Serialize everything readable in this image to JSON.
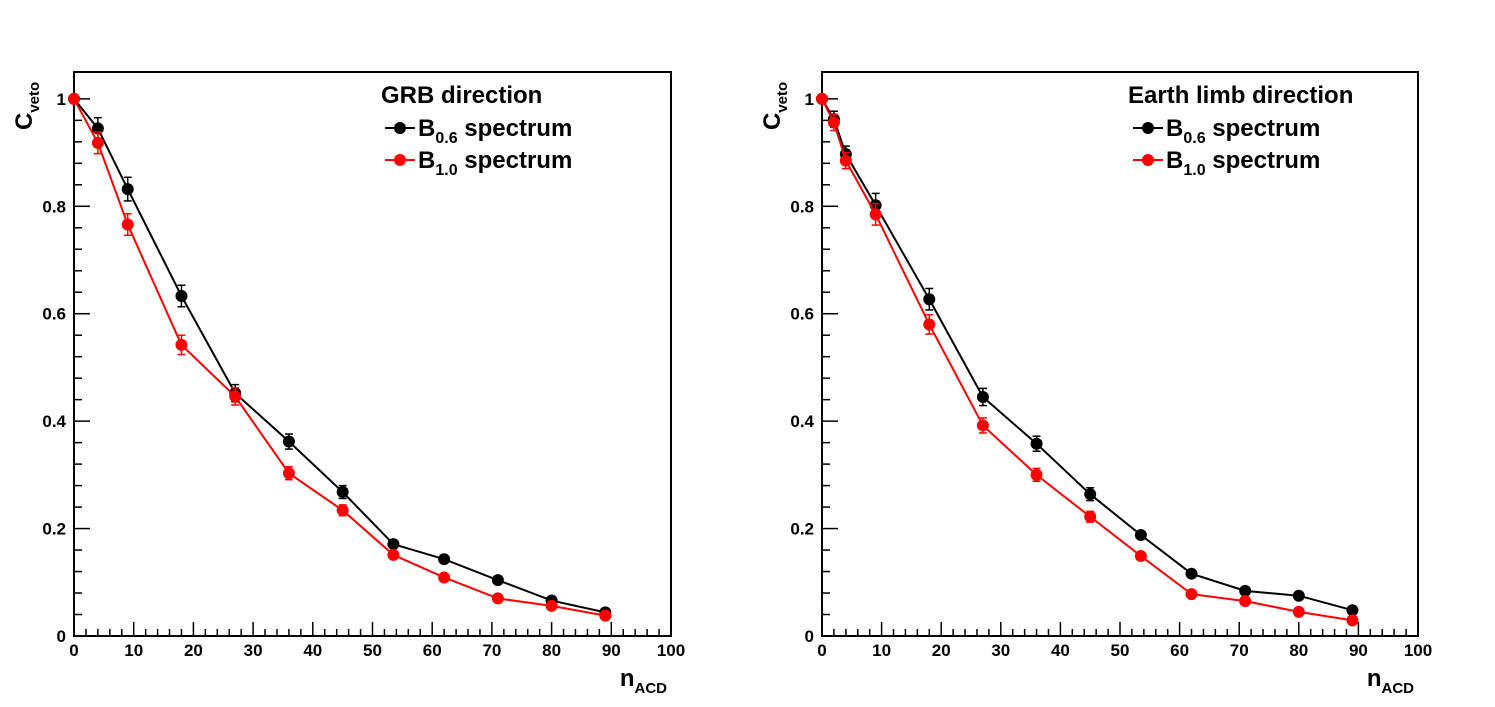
{
  "chart_data": [
    {
      "type": "line",
      "title": "GRB direction",
      "xlabel": {
        "main": "n",
        "sub": "ACD"
      },
      "ylabel": {
        "main": "C",
        "sub": "veto"
      },
      "xlim": [
        0,
        100
      ],
      "ylim": [
        0,
        1.05
      ],
      "x_ticks": [
        0,
        10,
        20,
        30,
        40,
        50,
        60,
        70,
        80,
        90,
        100
      ],
      "y_ticks": [
        0,
        0.2,
        0.4,
        0.6,
        0.8,
        1
      ],
      "x_tick_labels": [
        "0",
        "10",
        "20",
        "30",
        "40",
        "50",
        "60",
        "70",
        "80",
        "90",
        "100"
      ],
      "y_tick_labels": [
        "0",
        "0.2",
        "0.4",
        "0.6",
        "0.8",
        "1"
      ],
      "legend_position": "top-right",
      "grid": false,
      "series": [
        {
          "name": "B0.6 spectrum",
          "label_main": "B",
          "label_sub": "0.6",
          "label_rest": " spectrum",
          "color": "#000000",
          "x": [
            0,
            4,
            9,
            18,
            27,
            36,
            45,
            53.5,
            62,
            71,
            80,
            89
          ],
          "y": [
            1.0,
            0.945,
            0.832,
            0.633,
            0.452,
            0.362,
            0.268,
            0.171,
            0.143,
            0.104,
            0.066,
            0.044
          ],
          "err": [
            0,
            0.02,
            0.022,
            0.02,
            0.016,
            0.014,
            0.012,
            0.006,
            0.006,
            0.005,
            0.004,
            0.003
          ]
        },
        {
          "name": "B1.0 spectrum",
          "label_main": "B",
          "label_sub": "1.0",
          "label_rest": " spectrum",
          "color": "#ff0000",
          "x": [
            0,
            4,
            9,
            18,
            27,
            36,
            45,
            53.5,
            62,
            71,
            80,
            89
          ],
          "y": [
            1.0,
            0.918,
            0.766,
            0.542,
            0.446,
            0.303,
            0.234,
            0.151,
            0.109,
            0.07,
            0.056,
            0.038
          ],
          "err": [
            0,
            0.02,
            0.02,
            0.018,
            0.016,
            0.012,
            0.01,
            0.006,
            0.005,
            0.004,
            0.004,
            0.003
          ]
        }
      ]
    },
    {
      "type": "line",
      "title": "Earth limb direction",
      "xlabel": {
        "main": "n",
        "sub": "ACD"
      },
      "ylabel": {
        "main": "C",
        "sub": "veto"
      },
      "xlim": [
        0,
        100
      ],
      "ylim": [
        0,
        1.05
      ],
      "x_ticks": [
        0,
        10,
        20,
        30,
        40,
        50,
        60,
        70,
        80,
        90,
        100
      ],
      "y_ticks": [
        0,
        0.2,
        0.4,
        0.6,
        0.8,
        1
      ],
      "x_tick_labels": [
        "0",
        "10",
        "20",
        "30",
        "40",
        "50",
        "60",
        "70",
        "80",
        "90",
        "100"
      ],
      "y_tick_labels": [
        "0",
        "0.2",
        "0.4",
        "0.6",
        "0.8",
        "1"
      ],
      "legend_position": "top-right",
      "grid": false,
      "series": [
        {
          "name": "B0.6 spectrum",
          "label_main": "B",
          "label_sub": "0.6",
          "label_rest": " spectrum",
          "color": "#000000",
          "x": [
            0,
            2,
            4,
            9,
            18,
            27,
            36,
            45,
            53.5,
            62,
            71,
            80,
            89
          ],
          "y": [
            1.0,
            0.962,
            0.897,
            0.802,
            0.627,
            0.445,
            0.358,
            0.264,
            0.188,
            0.116,
            0.084,
            0.075,
            0.048
          ],
          "err": [
            0,
            0.015,
            0.015,
            0.022,
            0.02,
            0.016,
            0.014,
            0.012,
            0.006,
            0.006,
            0.005,
            0.004,
            0.003
          ]
        },
        {
          "name": "B1.0 spectrum",
          "label_main": "B",
          "label_sub": "1.0",
          "label_rest": " spectrum",
          "color": "#ff0000",
          "x": [
            0,
            2,
            4,
            9,
            18,
            27,
            36,
            45,
            53.5,
            62,
            71,
            80,
            89
          ],
          "y": [
            1.0,
            0.956,
            0.885,
            0.785,
            0.58,
            0.392,
            0.3,
            0.222,
            0.149,
            0.078,
            0.065,
            0.045,
            0.029
          ],
          "err": [
            0,
            0.015,
            0.015,
            0.02,
            0.018,
            0.014,
            0.012,
            0.01,
            0.006,
            0.005,
            0.004,
            0.004,
            0.003
          ]
        }
      ]
    }
  ]
}
